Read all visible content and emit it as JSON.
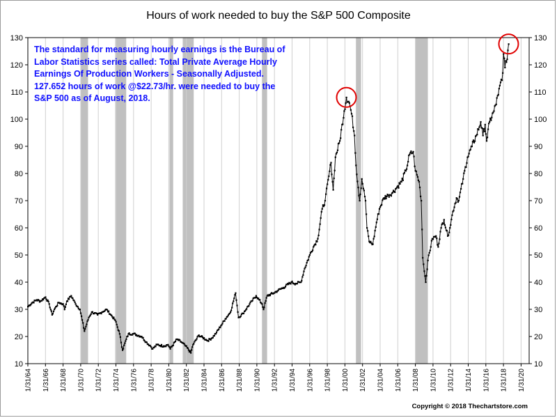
{
  "chart_data": {
    "type": "line",
    "title": "Hours of work needed to buy the S&P 500 Composite",
    "xlabel": "",
    "ylabel": "",
    "ylim": [
      10,
      130
    ],
    "yticks": [
      10,
      20,
      30,
      40,
      50,
      60,
      70,
      80,
      90,
      100,
      110,
      120,
      130
    ],
    "xlim": [
      "1964-01",
      "2020-12"
    ],
    "xtick_labels": [
      "1/31/64",
      "1/31/66",
      "1/31/68",
      "1/31/70",
      "1/31/72",
      "1/31/74",
      "1/31/76",
      "1/31/78",
      "1/31/80",
      "1/31/82",
      "1/31/84",
      "1/31/86",
      "1/31/88",
      "1/31/90",
      "1/31/92",
      "1/31/94",
      "1/31/96",
      "1/31/98",
      "1/31/00",
      "1/31/02",
      "1/31/04",
      "1/31/06",
      "1/31/08",
      "1/31/10",
      "1/31/12",
      "1/31/14",
      "1/31/16",
      "1/31/18",
      "1/31/20"
    ],
    "grid": "vertical lines at each x tick",
    "line_color": "#000000",
    "recession_color": "#c0c0c0",
    "highlight_color": "#e00000",
    "recessions": [
      {
        "start": "1970-01",
        "end": "1970-11"
      },
      {
        "start": "1973-12",
        "end": "1975-03"
      },
      {
        "start": "1980-02",
        "end": "1980-07"
      },
      {
        "start": "1981-08",
        "end": "1982-11"
      },
      {
        "start": "1990-08",
        "end": "1991-03"
      },
      {
        "start": "2001-04",
        "end": "2001-11"
      },
      {
        "start": "2008-01",
        "end": "2009-06"
      }
    ],
    "highlights": [
      {
        "date": "2000-03",
        "value": 108
      },
      {
        "date": "2018-08",
        "value": 127.652
      }
    ],
    "series": [
      {
        "points": [
          [
            "1964-01",
            31
          ],
          [
            "1964-07",
            32.5
          ],
          [
            "1965-01",
            33.5
          ],
          [
            "1965-06",
            33
          ],
          [
            "1966-01",
            34.5
          ],
          [
            "1966-06",
            32
          ],
          [
            "1966-10",
            28
          ],
          [
            "1967-01",
            30
          ],
          [
            "1967-07",
            32.5
          ],
          [
            "1968-01",
            32
          ],
          [
            "1968-03",
            30
          ],
          [
            "1968-06",
            33
          ],
          [
            "1968-12",
            35
          ],
          [
            "1969-06",
            32
          ],
          [
            "1969-12",
            30
          ],
          [
            "1970-06",
            22
          ],
          [
            "1970-12",
            27
          ],
          [
            "1971-04",
            29
          ],
          [
            "1971-12",
            28
          ],
          [
            "1972-06",
            29
          ],
          [
            "1972-12",
            30
          ],
          [
            "1973-06",
            28
          ],
          [
            "1973-12",
            26
          ],
          [
            "1974-06",
            21
          ],
          [
            "1974-10",
            15
          ],
          [
            "1975-03",
            19
          ],
          [
            "1975-06",
            21
          ],
          [
            "1976-01",
            21
          ],
          [
            "1976-12",
            20
          ],
          [
            "1977-06",
            18
          ],
          [
            "1977-12",
            16.5
          ],
          [
            "1978-03",
            15.5
          ],
          [
            "1978-09",
            17
          ],
          [
            "1979-06",
            16.5
          ],
          [
            "1979-12",
            17
          ],
          [
            "1980-03",
            15.5
          ],
          [
            "1980-12",
            19
          ],
          [
            "1981-06",
            18
          ],
          [
            "1981-12",
            16.5
          ],
          [
            "1982-07",
            14
          ],
          [
            "1982-10",
            17
          ],
          [
            "1983-06",
            20.5
          ],
          [
            "1984-06",
            18.5
          ],
          [
            "1984-12",
            19.5
          ],
          [
            "1985-06",
            21.5
          ],
          [
            "1985-12",
            24
          ],
          [
            "1986-06",
            26.5
          ],
          [
            "1987-01",
            29
          ],
          [
            "1987-08",
            36
          ],
          [
            "1987-12",
            27
          ],
          [
            "1988-06",
            28.5
          ],
          [
            "1989-06",
            33
          ],
          [
            "1989-12",
            35
          ],
          [
            "1990-08",
            32
          ],
          [
            "1990-10",
            30
          ],
          [
            "1991-03",
            35
          ],
          [
            "1991-12",
            36
          ],
          [
            "1992-06",
            37
          ],
          [
            "1993-01",
            38
          ],
          [
            "1993-12",
            40
          ],
          [
            "1994-06",
            39.5
          ],
          [
            "1995-01",
            40
          ],
          [
            "1995-06",
            45
          ],
          [
            "1996-01",
            50
          ],
          [
            "1996-06",
            53
          ],
          [
            "1996-12",
            56
          ],
          [
            "1997-06",
            67
          ],
          [
            "1997-10",
            70
          ],
          [
            "1998-03",
            79
          ],
          [
            "1998-06",
            84
          ],
          [
            "1998-09",
            74
          ],
          [
            "1998-12",
            86
          ],
          [
            "1999-06",
            92
          ],
          [
            "1999-12",
            103
          ],
          [
            "2000-03",
            108
          ],
          [
            "2000-07",
            106
          ],
          [
            "2000-10",
            102
          ],
          [
            "2001-02",
            94
          ],
          [
            "2001-04",
            83
          ],
          [
            "2001-09",
            70
          ],
          [
            "2001-12",
            78
          ],
          [
            "2002-05",
            70
          ],
          [
            "2002-07",
            60
          ],
          [
            "2002-10",
            55
          ],
          [
            "2003-03",
            54
          ],
          [
            "2003-08",
            62
          ],
          [
            "2003-12",
            67
          ],
          [
            "2004-06",
            71
          ],
          [
            "2004-12",
            72
          ],
          [
            "2005-06",
            73
          ],
          [
            "2005-12",
            75
          ],
          [
            "2006-06",
            77
          ],
          [
            "2006-12",
            81
          ],
          [
            "2007-05",
            87
          ],
          [
            "2007-10",
            88
          ],
          [
            "2008-01",
            81
          ],
          [
            "2008-06",
            77
          ],
          [
            "2008-09",
            70
          ],
          [
            "2008-11",
            49
          ],
          [
            "2009-03",
            40
          ],
          [
            "2009-06",
            48
          ],
          [
            "2009-12",
            56
          ],
          [
            "2010-05",
            57
          ],
          [
            "2010-08",
            53
          ],
          [
            "2010-12",
            60
          ],
          [
            "2011-04",
            63
          ],
          [
            "2011-09",
            57
          ],
          [
            "2011-12",
            60
          ],
          [
            "2012-04",
            66
          ],
          [
            "2012-09",
            71
          ],
          [
            "2012-12",
            70
          ],
          [
            "2013-06",
            78
          ],
          [
            "2013-12",
            86
          ],
          [
            "2014-06",
            90
          ],
          [
            "2014-12",
            94
          ],
          [
            "2015-06",
            99
          ],
          [
            "2015-09",
            94
          ],
          [
            "2015-12",
            98
          ],
          [
            "2016-02",
            92
          ],
          [
            "2016-06",
            99
          ],
          [
            "2016-12",
            103
          ],
          [
            "2017-06",
            109
          ],
          [
            "2017-12",
            117
          ],
          [
            "2018-01",
            124
          ],
          [
            "2018-03",
            119
          ],
          [
            "2018-05",
            121
          ],
          [
            "2018-08",
            127.652
          ]
        ]
      }
    ]
  },
  "annotation": {
    "lines": [
      "The standard for measuring hourly earnings is the Bureau of",
      "Labor Statistics series called:  Total Private Average Hourly",
      "Earnings Of Production Workers - Seasonally Adjusted.",
      "127.652 hours of work @$22.73/hr. were needed to buy the",
      "S&P 500 as of August, 2018."
    ]
  },
  "footer": {
    "copyright": "Copyright © 2018 Thechartstore.com"
  }
}
